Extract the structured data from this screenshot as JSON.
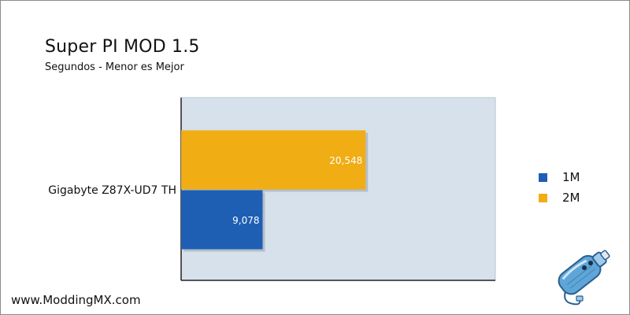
{
  "chart_data": {
    "type": "bar",
    "orientation": "horizontal",
    "title": "Super PI MOD 1.5",
    "subtitle": "Segundos - Menor es Mejor",
    "categories": [
      "Gigabyte Z87X-UD7 TH"
    ],
    "series": [
      {
        "name": "1M",
        "values": [
          9.078
        ],
        "value_labels": [
          "9,078"
        ],
        "color": "#1e5fb4"
      },
      {
        "name": "2M",
        "values": [
          20.548
        ],
        "value_labels": [
          "20,548"
        ],
        "color": "#f0ad14"
      }
    ],
    "xlim": [
      0,
      35
    ],
    "grid": false,
    "plot_background": "#d6e1ec",
    "legend_position": "right"
  },
  "footer": {
    "site": "www.ModdingMX.com"
  },
  "mascot": {
    "icon": "modding-bottle-mascot-icon"
  }
}
